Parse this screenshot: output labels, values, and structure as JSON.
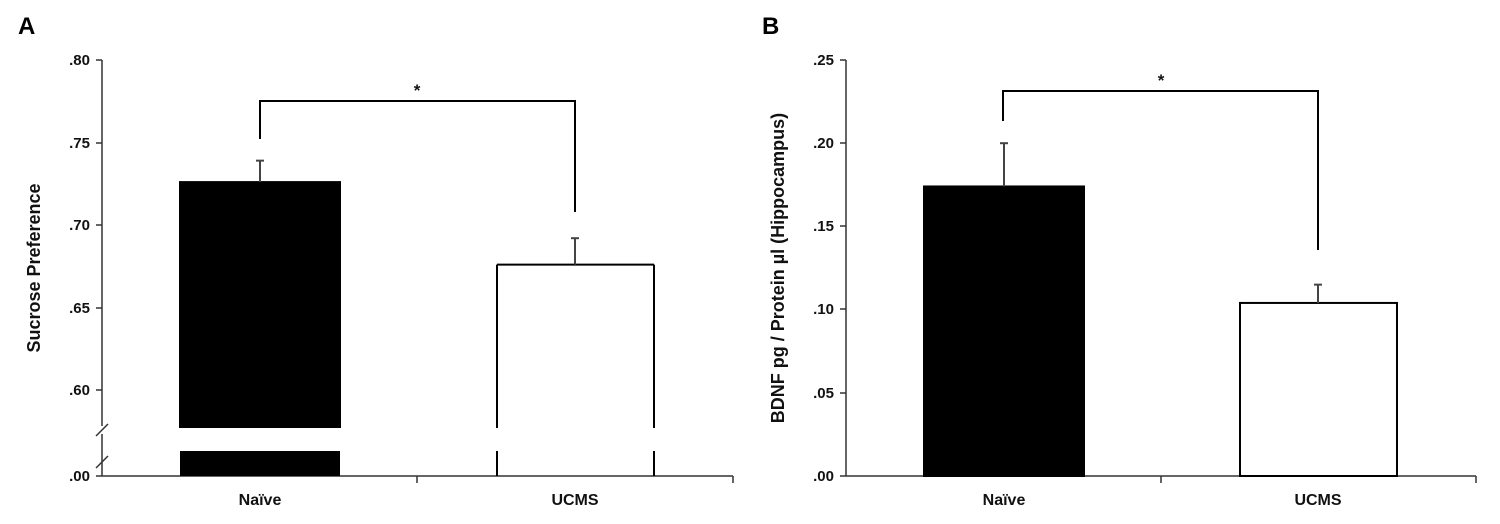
{
  "chart_data": [
    {
      "type": "bar",
      "panel": "A",
      "categories": [
        "Naïve",
        "UCMS"
      ],
      "values": [
        0.726,
        0.676
      ],
      "errors": [
        0.013,
        0.016
      ],
      "bar_colors": [
        "#000000",
        "#ffffff"
      ],
      "ylabel": "Sucrose Preference",
      "xlabel": "",
      "ylim": [
        0.575,
        0.8
      ],
      "axis_break": true,
      "yticks": [
        ".00",
        ".60",
        ".65",
        ".70",
        ".75",
        ".80"
      ],
      "significance": "*",
      "grid": false
    },
    {
      "type": "bar",
      "panel": "B",
      "categories": [
        "Naïve",
        "UCMS"
      ],
      "values": [
        0.174,
        0.104
      ],
      "errors": [
        0.026,
        0.011
      ],
      "bar_colors": [
        "#000000",
        "#ffffff"
      ],
      "ylabel": "BDNF pg / Protein µl (Hippocampus)",
      "xlabel": "",
      "ylim": [
        0.0,
        0.25
      ],
      "axis_break": false,
      "yticks": [
        ".00",
        ".05",
        ".10",
        ".15",
        ".20",
        ".25"
      ],
      "significance": "*",
      "grid": false
    }
  ]
}
